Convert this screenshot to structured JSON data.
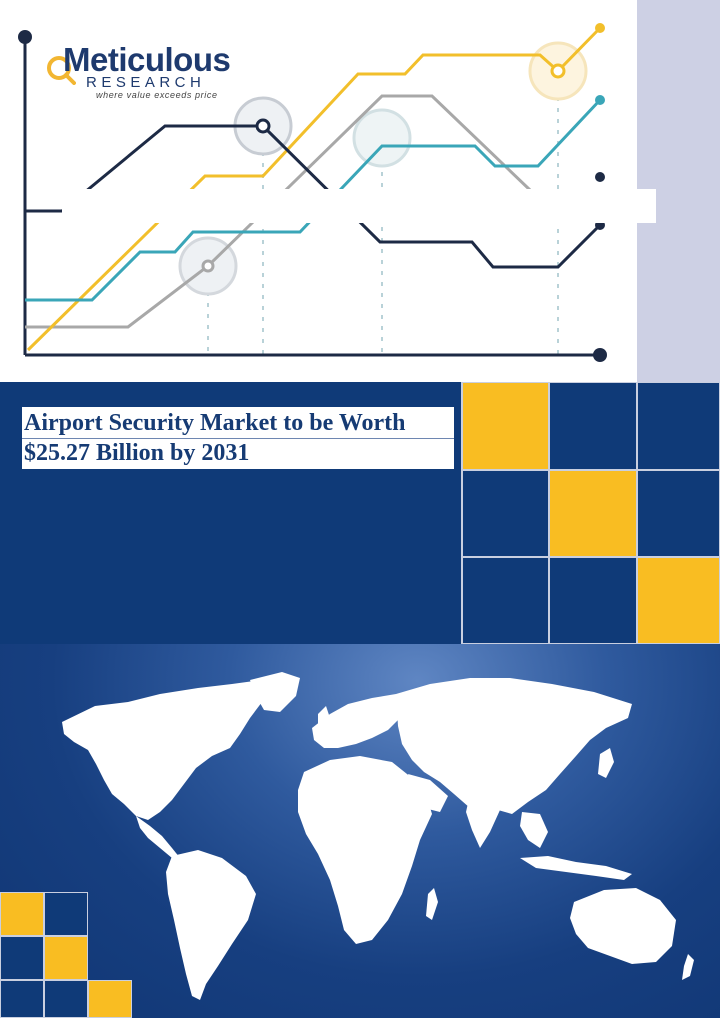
{
  "brand": {
    "name": "Meticulous",
    "sub": "RESEARCH",
    "tagline": "where value exceeds price"
  },
  "title": {
    "line1": "Airport Security Market to be Worth",
    "line2": "$25.27 Billion by 2031"
  },
  "colors": {
    "navy": "#0f3a78",
    "yellow": "#f9bd22",
    "teal": "#3aa6b8",
    "gray": "#a8a8a8",
    "dark_line": "#1d2a45",
    "lavender": "#cdd0e4"
  },
  "decor": {
    "chart_graphic": "line-chart-illustration",
    "map": "world-map-icon"
  }
}
